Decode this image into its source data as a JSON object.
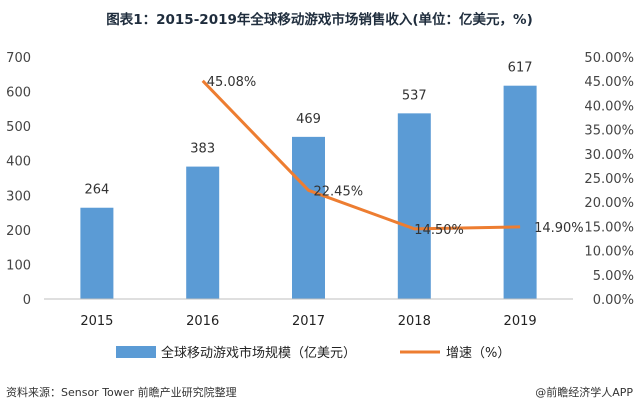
{
  "title": "图表1：2015-2019年全球移动游戏市场销售收入(单位：亿美元，%)",
  "source": "资料来源：Sensor Tower  前瞻产业研究院整理",
  "brand": "@前瞻经济学人APP",
  "colors": {
    "bar": "#5b9bd5",
    "line": "#ed7d31"
  },
  "chart_data": {
    "type": "bar+line",
    "categories": [
      "2015",
      "2016",
      "2017",
      "2018",
      "2019"
    ],
    "series": [
      {
        "name": "全球移动游戏市场规模（亿美元）",
        "type": "bar",
        "axis": "left",
        "values": [
          264,
          383,
          469,
          537,
          617
        ],
        "labels": [
          "264",
          "383",
          "469",
          "537",
          "617"
        ]
      },
      {
        "name": "增速（%）",
        "type": "line",
        "axis": "right",
        "values": [
          null,
          45.08,
          22.45,
          14.5,
          14.9
        ],
        "labels": [
          "",
          "45.08%",
          "22.45%",
          "14.50%",
          "14.90%"
        ]
      }
    ],
    "y_left": {
      "min": 0,
      "max": 700,
      "ticks": [
        "0",
        "100",
        "200",
        "300",
        "400",
        "500",
        "600",
        "700"
      ]
    },
    "y_right": {
      "min": 0,
      "max": 50,
      "ticks": [
        "0.00%",
        "5.00%",
        "10.00%",
        "15.00%",
        "20.00%",
        "25.00%",
        "30.00%",
        "35.00%",
        "40.00%",
        "45.00%",
        "50.00%"
      ]
    },
    "legend": [
      "全球移动游戏市场规模（亿美元）",
      "增速（%）"
    ],
    "legend_position": "bottom"
  }
}
